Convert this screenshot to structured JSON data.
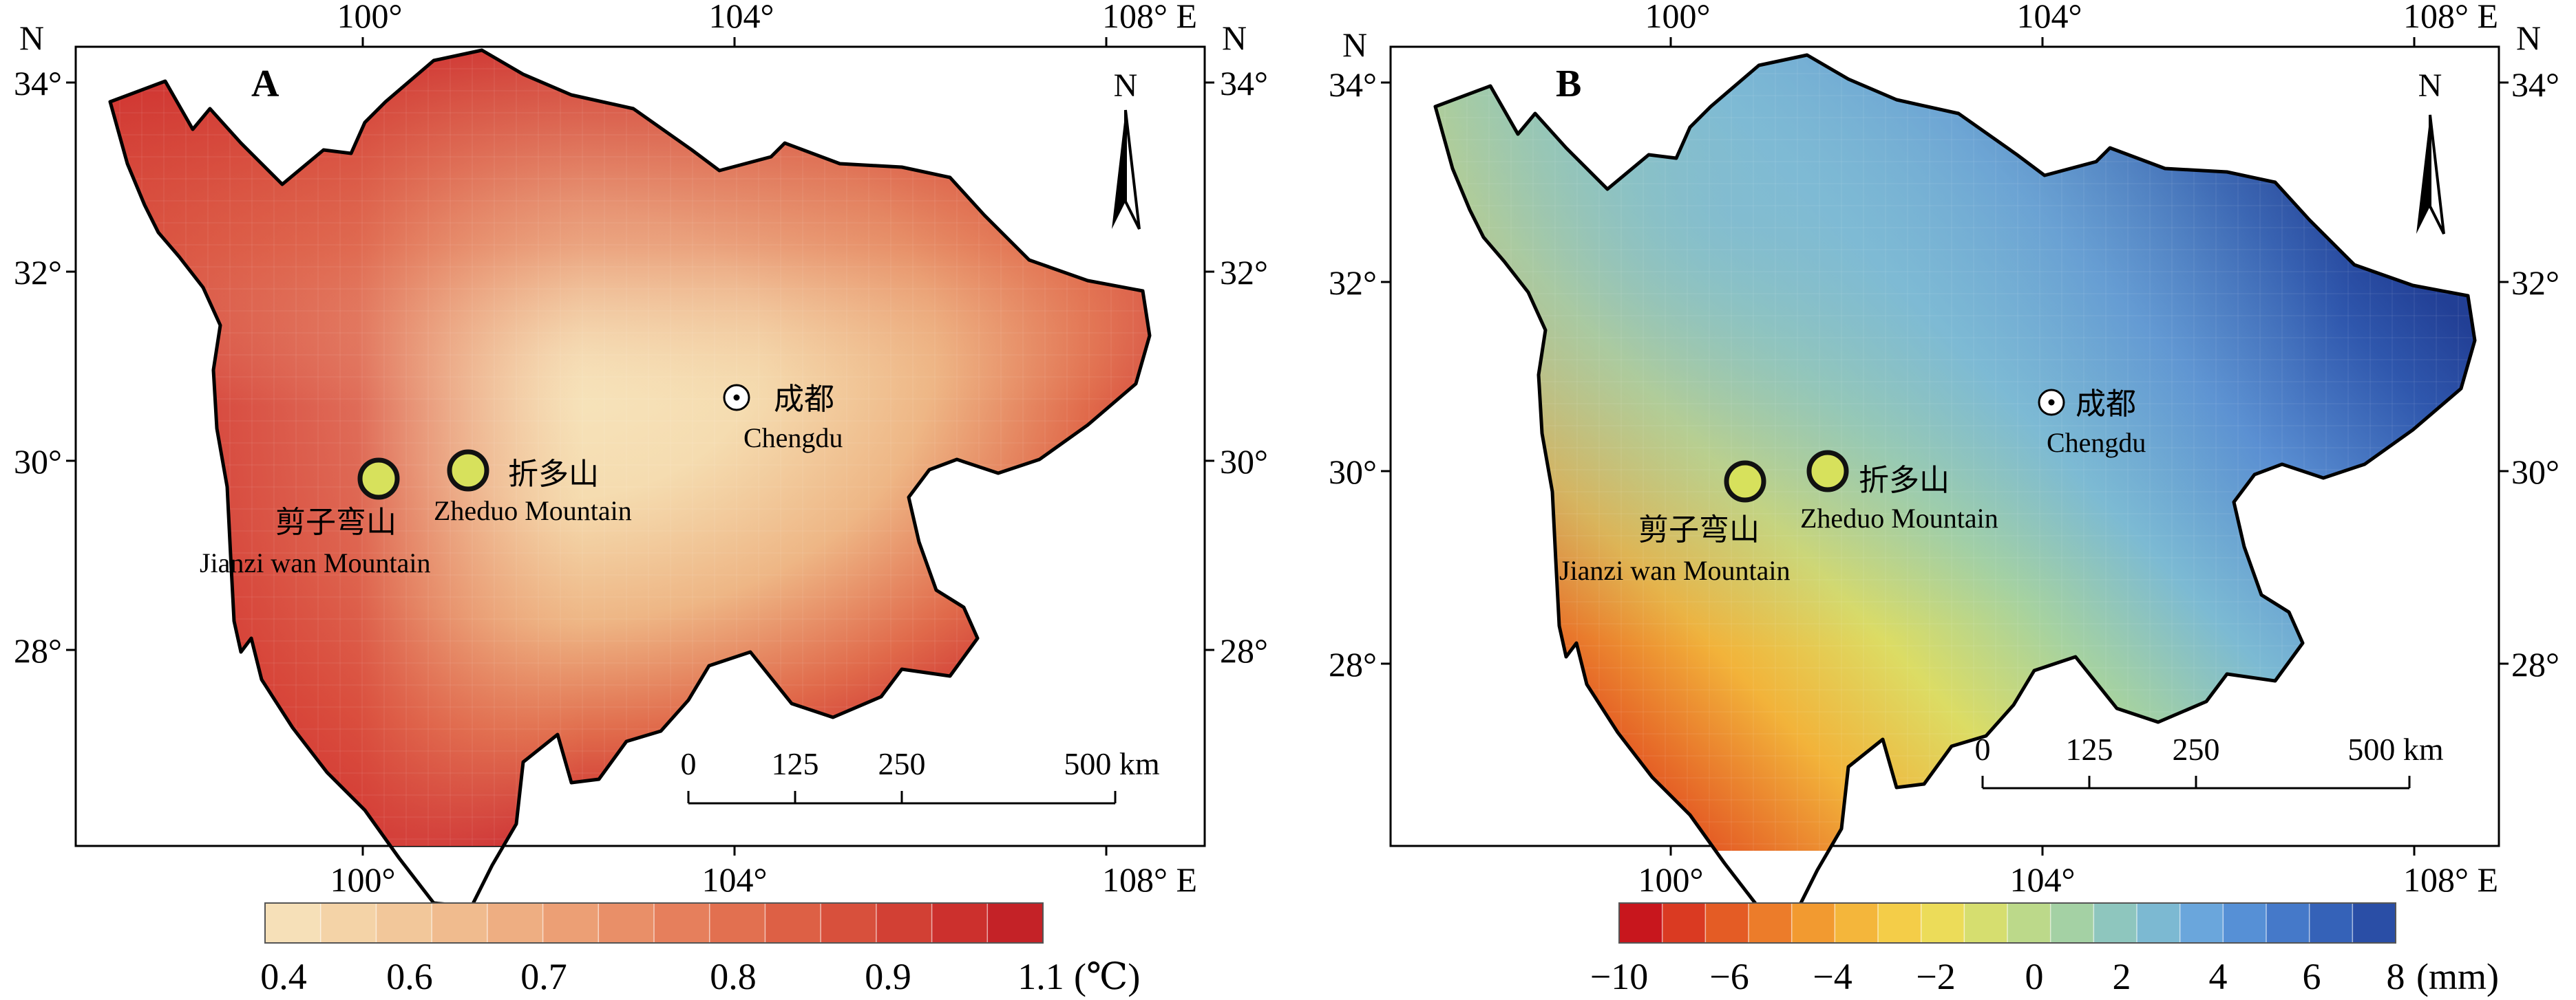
{
  "panels": [
    {
      "letter": "A",
      "units_label": "(℃)",
      "lon_ticks": [
        "100°",
        "104°",
        "108° E"
      ],
      "lat_ticks": [
        "34°",
        "32°",
        "30°",
        "28°"
      ],
      "north_label_left": "N",
      "north_label_right": "N",
      "north_arrow_label": "N",
      "colorbar_ticks": [
        "0.4",
        "0.6",
        "0.7",
        "0.8",
        "0.9",
        "1.1"
      ],
      "colorbar_colors": [
        "#f6e0b8",
        "#f4d3a7",
        "#f2c79a",
        "#f0bb8e",
        "#eeae82",
        "#ec9f75",
        "#e98f68",
        "#e67f5c",
        "#e27050",
        "#dd6045",
        "#d8503c",
        "#d24034",
        "#cc302d",
        "#c42227"
      ],
      "scale_ticks": [
        "0",
        "125",
        "250",
        "500 km"
      ],
      "city": {
        "name_cn": "成都",
        "name_en": "Chengdu"
      },
      "sites": [
        {
          "name_cn": "剪子弯山",
          "name_en": "Jianzi wan Mountain"
        },
        {
          "name_cn": "折多山",
          "name_en": "Zheduo Mountain"
        }
      ]
    },
    {
      "letter": "B",
      "units_label": "(mm)",
      "lon_ticks": [
        "100°",
        "104°",
        "108° E"
      ],
      "lat_ticks": [
        "34°",
        "32°",
        "30°",
        "28°"
      ],
      "north_label_left": "N",
      "north_label_right": "N",
      "north_arrow_label": "N",
      "colorbar_ticks": [
        "−10",
        "−6",
        "−4",
        "−2",
        "0",
        "2",
        "4",
        "6",
        "8"
      ],
      "colorbar_colors": [
        "#c8161d",
        "#da3a22",
        "#e45c25",
        "#ec7c2a",
        "#f29a30",
        "#f4b63b",
        "#f4cd48",
        "#ecdc59",
        "#d6de6f",
        "#bcd98a",
        "#a4d1a4",
        "#8ec6be",
        "#7cb9d2",
        "#6aa6dc",
        "#5690d6",
        "#4579c9",
        "#3562b8",
        "#2a4ea6"
      ],
      "scale_ticks": [
        "0",
        "125",
        "250",
        "500 km"
      ],
      "city": {
        "name_cn": "成都",
        "name_en": "Chengdu"
      },
      "sites": [
        {
          "name_cn": "剪子弯山",
          "name_en": "Jianzi wan Mountain"
        },
        {
          "name_cn": "折多山",
          "name_en": "Zheduo Mountain"
        }
      ]
    }
  ]
}
